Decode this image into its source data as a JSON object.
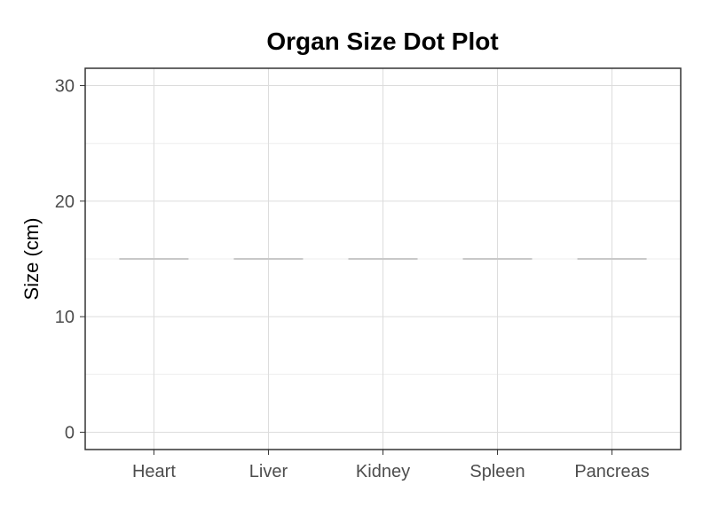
{
  "chart_data": {
    "type": "scatter",
    "title": "Organ Size Dot Plot",
    "xlabel": "",
    "ylabel": "Size (cm)",
    "categories": [
      "Heart",
      "Liver",
      "Kidney",
      "Spleen",
      "Pancreas"
    ],
    "values": [
      15,
      15,
      15,
      15,
      15
    ],
    "ylim": [
      -1.5,
      31.5
    ],
    "y_ticks": [
      0,
      10,
      20,
      30
    ],
    "y_tick_labels": [
      "0",
      "10",
      "20",
      "30"
    ],
    "y_minor_ticks": [
      5,
      15,
      25
    ],
    "grid": true,
    "mark_style": "horizontal-line",
    "colors": {
      "mark": "#c8c8c8",
      "grid_major": "#dcdcdc",
      "grid_minor": "#eeeeee",
      "panel_border": "#333333",
      "axis_text": "#4d4d4d",
      "title": "#000000"
    }
  }
}
